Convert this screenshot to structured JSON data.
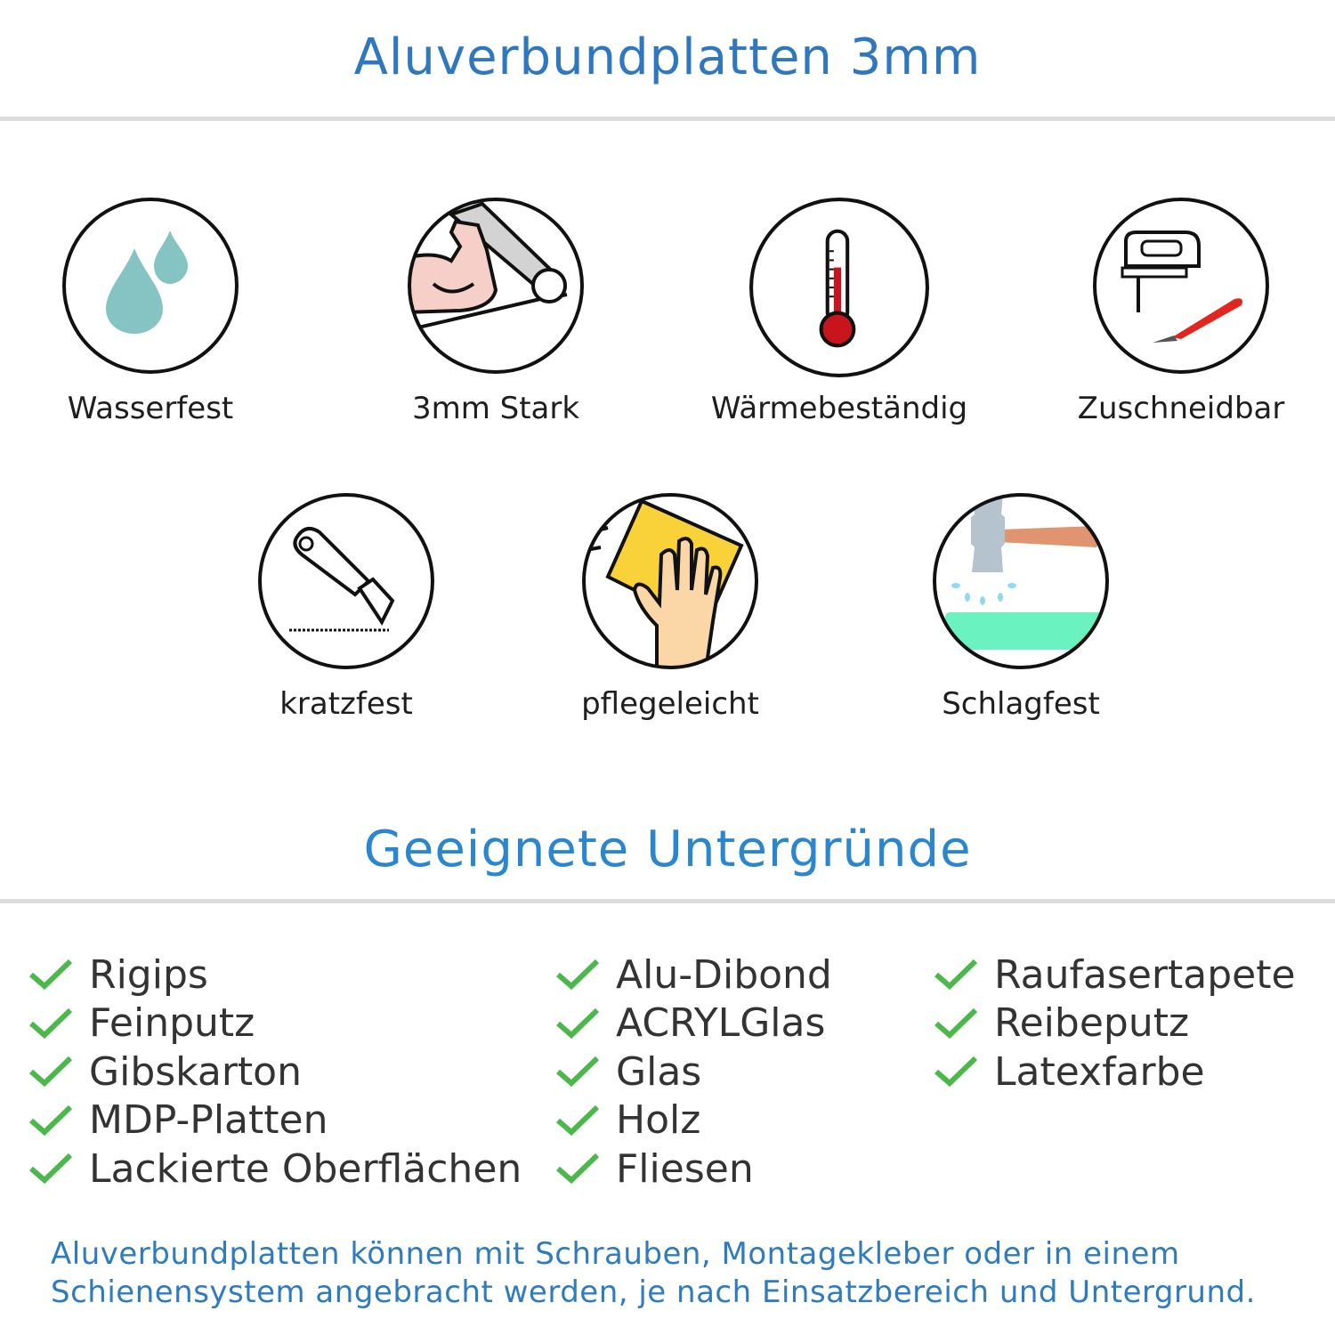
{
  "header": {
    "title": "Aluverbundplatten 3mm"
  },
  "features": [
    {
      "label": "Wasserfest",
      "icon": "water-drops-icon"
    },
    {
      "label": "3mm Stark",
      "icon": "strong-arm-icon"
    },
    {
      "label": "Wärmebeständig",
      "icon": "thermometer-icon"
    },
    {
      "label": "Zuschneidbar",
      "icon": "jigsaw-icon"
    },
    {
      "label": "kratzfest",
      "icon": "cutter-knife-icon"
    },
    {
      "label": "pflegeleicht",
      "icon": "cleaning-hand-icon"
    },
    {
      "label": "Schlagfest",
      "icon": "hammer-icon"
    }
  ],
  "surfaces": {
    "title": "Geeignete Untergründe",
    "columns": [
      [
        "Rigips",
        "Feinputz",
        "Gibskarton",
        "MDP-Platten",
        "Lackierte Oberflächen"
      ],
      [
        "Alu-Dibond",
        "ACRYLGlas",
        "Glas",
        "Holz",
        "Fliesen"
      ],
      [
        "Raufasertapete",
        "Reibeputz",
        "Latexfarbe"
      ]
    ]
  },
  "footer": {
    "line1": "Aluverbundplatten können mit Schrauben, Montagekleber oder in einem",
    "line2": "Schienensystem angebracht werden, je nach Einsatzbereich und Untergrund."
  },
  "colors": {
    "title": "#2f78bf",
    "check": "#4cb84c",
    "divider": "#dcdcdc"
  }
}
